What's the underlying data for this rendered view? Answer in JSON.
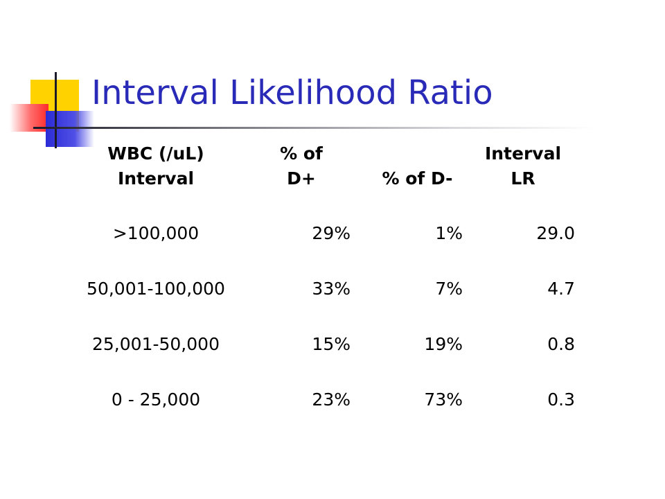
{
  "slide": {
    "title": "Interval Likelihood Ratio"
  },
  "table": {
    "headers": [
      "WBC (/uL)\nInterval",
      "% of\nD+",
      "% of D-",
      "Interval\nLR"
    ],
    "rows": [
      [
        ">100,000",
        "29%",
        "1%",
        "29.0"
      ],
      [
        "50,001-100,000",
        "33%",
        "7%",
        "4.7"
      ],
      [
        "25,001-50,000",
        "15%",
        "19%",
        "0.8"
      ],
      [
        "0 - 25,000",
        "23%",
        "73%",
        "0.3"
      ]
    ]
  },
  "colors": {
    "title": "#2a2ab8",
    "deco_yellow": "#ffd200",
    "deco_red": "#ff2a2a",
    "deco_blue": "#2c2cd6"
  }
}
